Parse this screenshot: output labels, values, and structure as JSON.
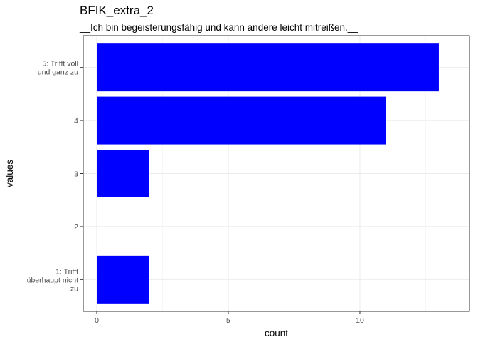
{
  "chart_data": {
    "type": "bar",
    "orientation": "horizontal",
    "title": "BFIK_extra_2",
    "subtitle": "__Ich bin begeisterungsfähig und kann andere leicht mitreißen.__",
    "xlabel": "count",
    "ylabel": "values",
    "categories": [
      "1: Trifft überhaupt nicht zu",
      "2",
      "3",
      "4",
      "5: Trifft voll und ganz zu"
    ],
    "category_label_lines": [
      [
        "1: Trifft",
        "überhaupt nicht",
        "zu"
      ],
      [
        "2"
      ],
      [
        "3"
      ],
      [
        "4"
      ],
      [
        "5: Trifft voll",
        "und ganz zu"
      ]
    ],
    "values": [
      2,
      0,
      2,
      11,
      13
    ],
    "xlim": [
      0,
      13.65
    ],
    "xticks": [
      0,
      5,
      10
    ],
    "bar_color": "#0000ff",
    "grid": true,
    "legend": "none"
  }
}
